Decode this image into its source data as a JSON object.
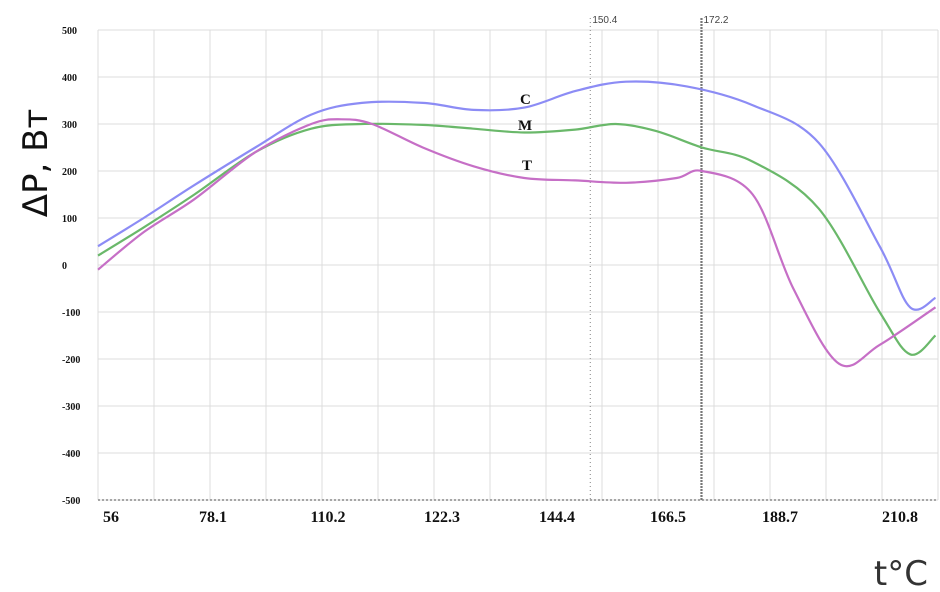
{
  "chart_data": {
    "type": "line",
    "ylabel": "ΔP, Вт",
    "xlabel": "t°C",
    "xlim": [
      56,
      221.5
    ],
    "ylim": [
      -500,
      500
    ],
    "x_tick_labels": [
      "56",
      "78.1",
      "110.2",
      "122.3",
      "144.4",
      "166.5",
      "188.7",
      "210.8"
    ],
    "y_tick_labels": [
      "500",
      "400",
      "300",
      "200",
      "100",
      "0",
      "-100",
      "-200",
      "-300",
      "-400",
      "-500"
    ],
    "y_tick_values": [
      500,
      400,
      300,
      200,
      100,
      0,
      -100,
      -200,
      -300,
      -400,
      -500
    ],
    "grid": true,
    "markers": [
      {
        "label": "150.4",
        "x": 153.0,
        "style": "dotted"
      },
      {
        "label": "172.2",
        "x": 174.9,
        "style": "solid"
      }
    ],
    "series": [
      {
        "name": "C",
        "color": "#8c8cf5",
        "x": [
          56,
          65,
          75,
          87,
          98,
          108,
          120,
          130,
          140,
          150,
          160,
          172,
          185,
          198,
          210,
          216,
          221
        ],
        "y": [
          40,
          100,
          170,
          250,
          320,
          345,
          345,
          330,
          335,
          370,
          390,
          380,
          340,
          260,
          40,
          -90,
          -70
        ]
      },
      {
        "name": "M",
        "color": "#6ab86a",
        "x": [
          56,
          65,
          75,
          87,
          98,
          108,
          120,
          130,
          140,
          150,
          158,
          166,
          175,
          185,
          198,
          210,
          216,
          221
        ],
        "y": [
          20,
          80,
          150,
          240,
          290,
          300,
          298,
          290,
          282,
          288,
          300,
          285,
          250,
          220,
          120,
          -100,
          -190,
          -150
        ]
      },
      {
        "name": "T",
        "color": "#c66fc6",
        "x": [
          56,
          65,
          75,
          87,
          98,
          104,
          110,
          120,
          130,
          140,
          150,
          160,
          170,
          175,
          185,
          193,
          202,
          210,
          221
        ],
        "y": [
          -10,
          70,
          140,
          240,
          300,
          310,
          300,
          250,
          210,
          185,
          180,
          175,
          185,
          200,
          150,
          -50,
          -210,
          -170,
          -90
        ]
      }
    ]
  }
}
